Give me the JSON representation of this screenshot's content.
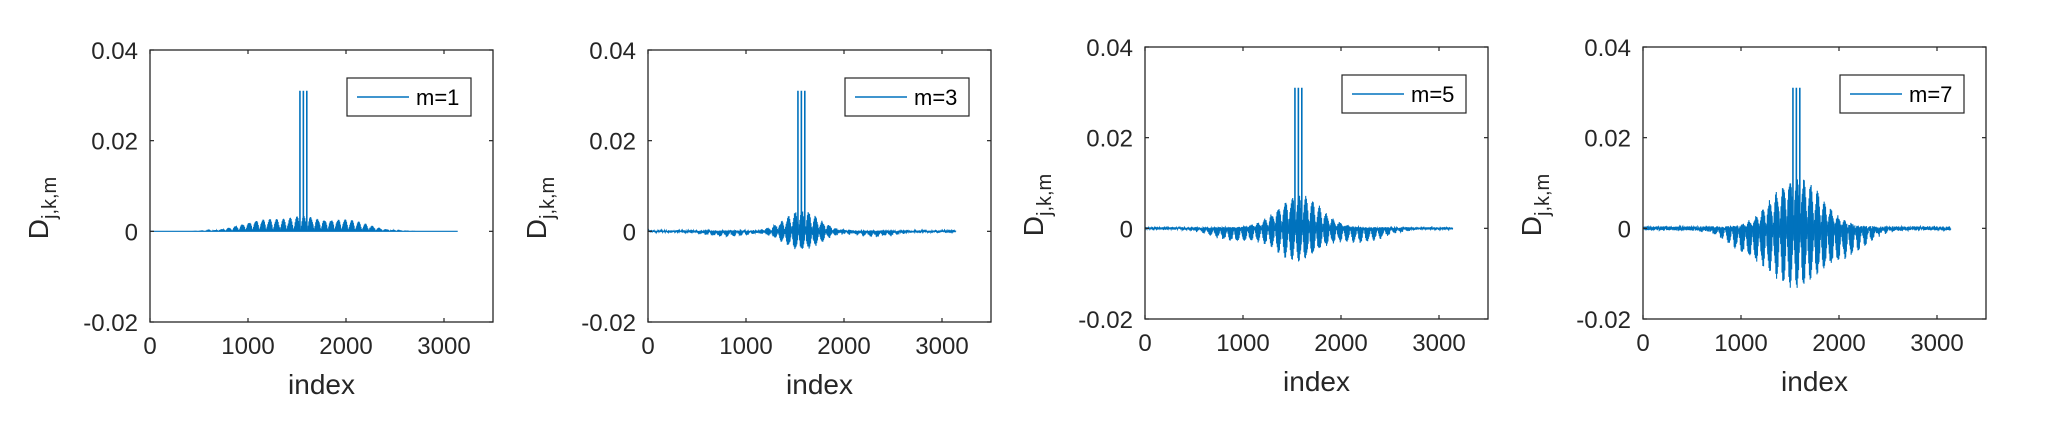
{
  "chart_data": [
    {
      "type": "line",
      "legend": "m=1",
      "xlabel": "index",
      "ylabel": "D",
      "ylabel_sub": "j,k,m",
      "xlim": [
        0,
        3500
      ],
      "ylim": [
        -0.02,
        0.04
      ],
      "xticks": [
        0,
        1000,
        2000,
        3000
      ],
      "yticks": [
        -0.02,
        0,
        0.02,
        0.04
      ],
      "xtick_labels": [
        "0",
        "1000",
        "2000",
        "3000"
      ],
      "ytick_labels": [
        "-0.02",
        "0",
        "0.02",
        "0.04"
      ],
      "data_range": [
        0,
        3140
      ],
      "spike_x": [
        1530,
        1565,
        1600
      ],
      "spike_y": 0.031,
      "envelope": {
        "center": 1570,
        "sigma": 130,
        "amp": 0.002
      },
      "lobes": [
        {
          "center": 1180,
          "sigma": 240,
          "amp": 0.0028
        },
        {
          "center": 1960,
          "sigma": 240,
          "amp": 0.0028
        }
      ],
      "noise": 0.0,
      "legend_position": "top-right",
      "grid": false
    },
    {
      "type": "line",
      "legend": "m=3",
      "xlabel": "index",
      "ylabel": "D",
      "ylabel_sub": "j,k,m",
      "xlim": [
        0,
        3500
      ],
      "ylim": [
        -0.02,
        0.04
      ],
      "xticks": [
        0,
        1000,
        2000,
        3000
      ],
      "yticks": [
        -0.02,
        0,
        0.02,
        0.04
      ],
      "xtick_labels": [
        "0",
        "1000",
        "2000",
        "3000"
      ],
      "ytick_labels": [
        "-0.02",
        "0",
        "0.02",
        "0.04"
      ],
      "data_range": [
        0,
        3140
      ],
      "spike_x": [
        1530,
        1565,
        1600
      ],
      "spike_y": 0.031,
      "envelope": {
        "center": 1570,
        "sigma": 180,
        "amp": 0.0045
      },
      "lobes": [
        {
          "center": 800,
          "sigma": 200,
          "amp": -0.0012
        },
        {
          "center": 2330,
          "sigma": 200,
          "amp": -0.0012
        }
      ],
      "noise": 0.0004,
      "legend_position": "top-right",
      "grid": false
    },
    {
      "type": "line",
      "legend": "m=5",
      "xlabel": "index",
      "ylabel": "D",
      "ylabel_sub": "j,k,m",
      "xlim": [
        0,
        3500
      ],
      "ylim": [
        -0.02,
        0.04
      ],
      "xticks": [
        0,
        1000,
        2000,
        3000
      ],
      "yticks": [
        -0.02,
        0,
        0.02,
        0.04
      ],
      "xtick_labels": [
        "0",
        "1000",
        "2000",
        "3000"
      ],
      "ytick_labels": [
        "-0.02",
        "0",
        "0.02",
        "0.04"
      ],
      "data_range": [
        0,
        3140
      ],
      "spike_x": [
        1530,
        1565,
        1600
      ],
      "spike_y": 0.031,
      "envelope": {
        "center": 1570,
        "sigma": 220,
        "amp": 0.0075
      },
      "lobes": [
        {
          "center": 920,
          "sigma": 230,
          "amp": -0.003
        },
        {
          "center": 2230,
          "sigma": 230,
          "amp": -0.003
        }
      ],
      "noise": 0.0005,
      "legend_position": "top-right",
      "grid": false
    },
    {
      "type": "line",
      "legend": "m=7",
      "xlabel": "index",
      "ylabel": "D",
      "ylabel_sub": "j,k,m",
      "xlim": [
        0,
        3500
      ],
      "ylim": [
        -0.02,
        0.04
      ],
      "xticks": [
        0,
        1000,
        2000,
        3000
      ],
      "yticks": [
        -0.02,
        0,
        0.02,
        0.04
      ],
      "xtick_labels": [
        "0",
        "1000",
        "2000",
        "3000"
      ],
      "ytick_labels": [
        "-0.02",
        "0",
        "0.02",
        "0.04"
      ],
      "data_range": [
        0,
        3140
      ],
      "spike_x": [
        1530,
        1565,
        1600
      ],
      "spike_y": 0.031,
      "envelope": {
        "center": 1570,
        "sigma": 240,
        "amp": 0.012
      },
      "lobes": [
        {
          "center": 1100,
          "sigma": 220,
          "amp": -0.0055
        },
        {
          "center": 2050,
          "sigma": 220,
          "amp": -0.0055
        }
      ],
      "noise": 0.0009,
      "legend_position": "top-right",
      "grid": false
    }
  ],
  "style": {
    "line_color": "#0072BD",
    "axis_color": "#262626"
  }
}
